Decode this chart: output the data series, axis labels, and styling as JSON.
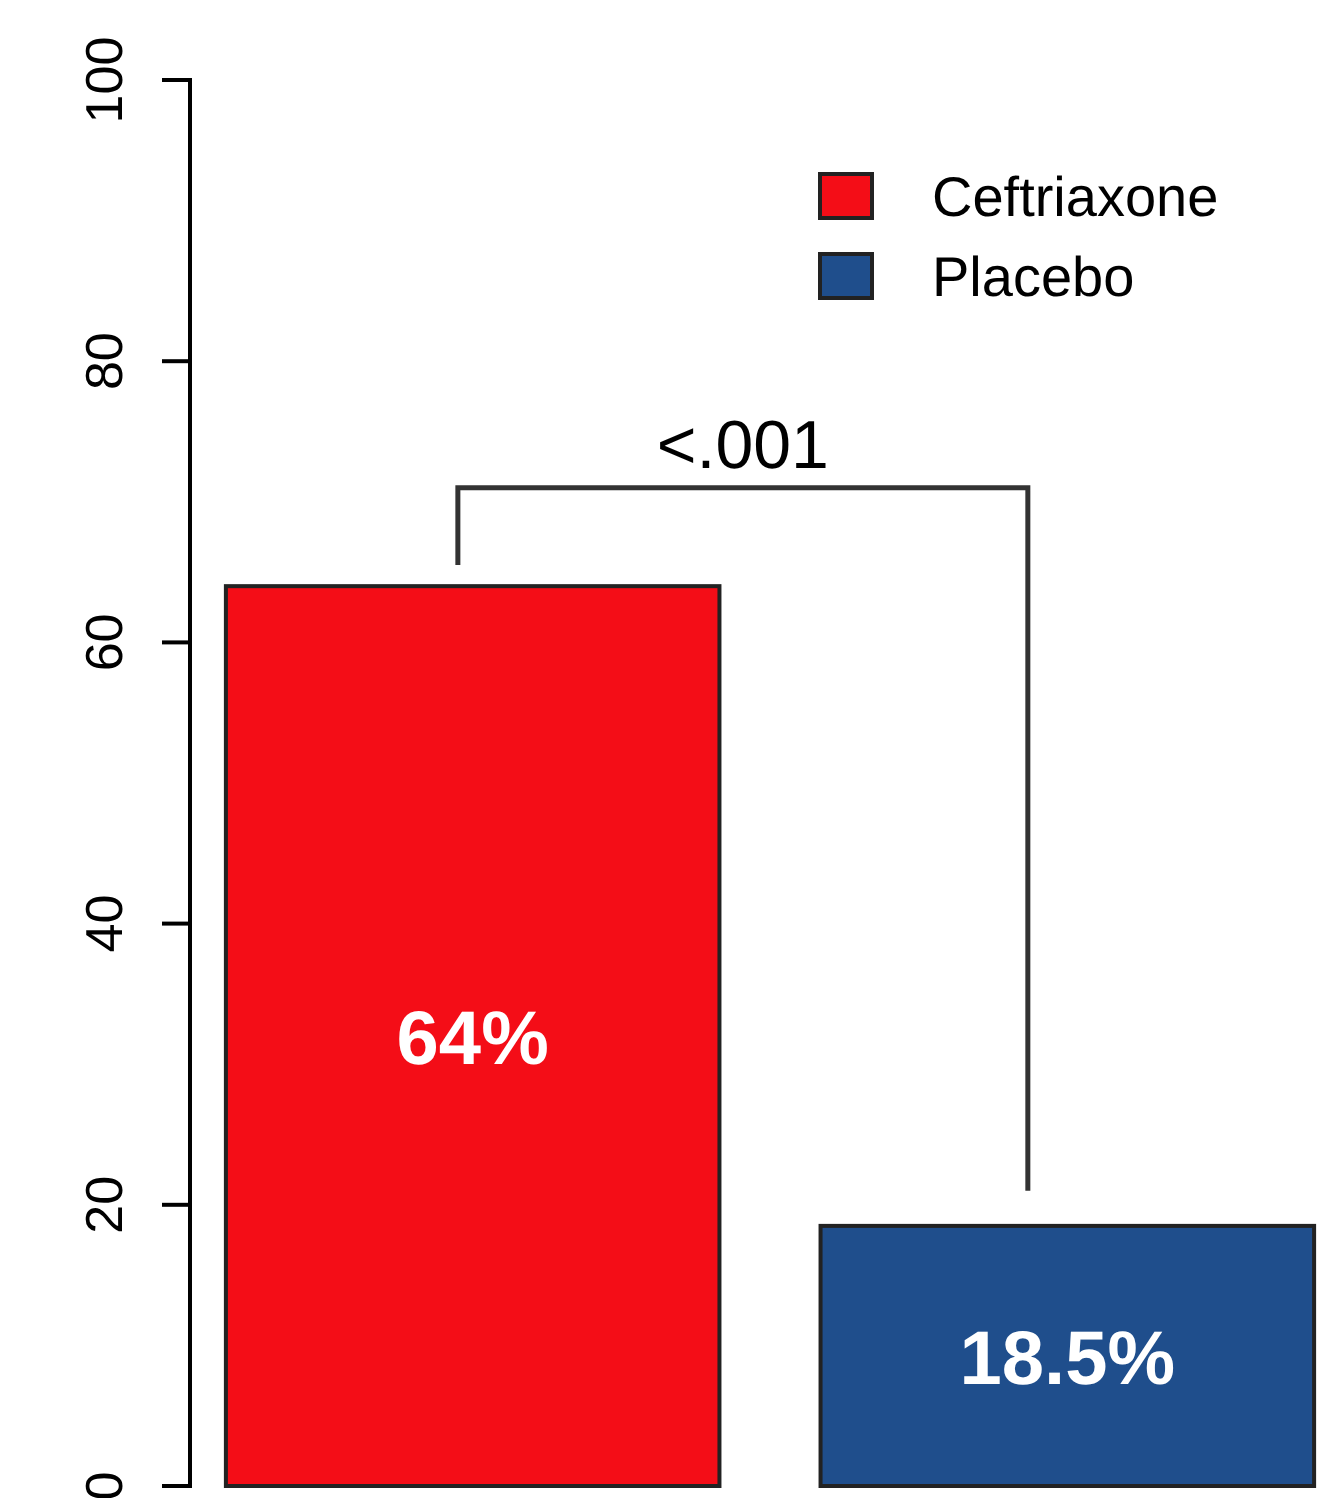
{
  "chart_data": {
    "type": "bar",
    "categories": [
      null
    ],
    "series": [
      {
        "name": "Ceftriaxone",
        "color": "#f40d17",
        "values": [
          64
        ],
        "value_labels": [
          "64%"
        ]
      },
      {
        "name": "Placebo",
        "color": "#1f4e8c",
        "values": [
          18.5
        ],
        "value_labels": [
          "18.5%"
        ]
      }
    ],
    "ylim": [
      0,
      100
    ],
    "yticks": [
      0,
      20,
      40,
      60,
      80,
      100
    ],
    "legend": "top right",
    "grid": false,
    "tick_labels": "y",
    "annotations": [
      {
        "text": "<.001"
      }
    ]
  }
}
